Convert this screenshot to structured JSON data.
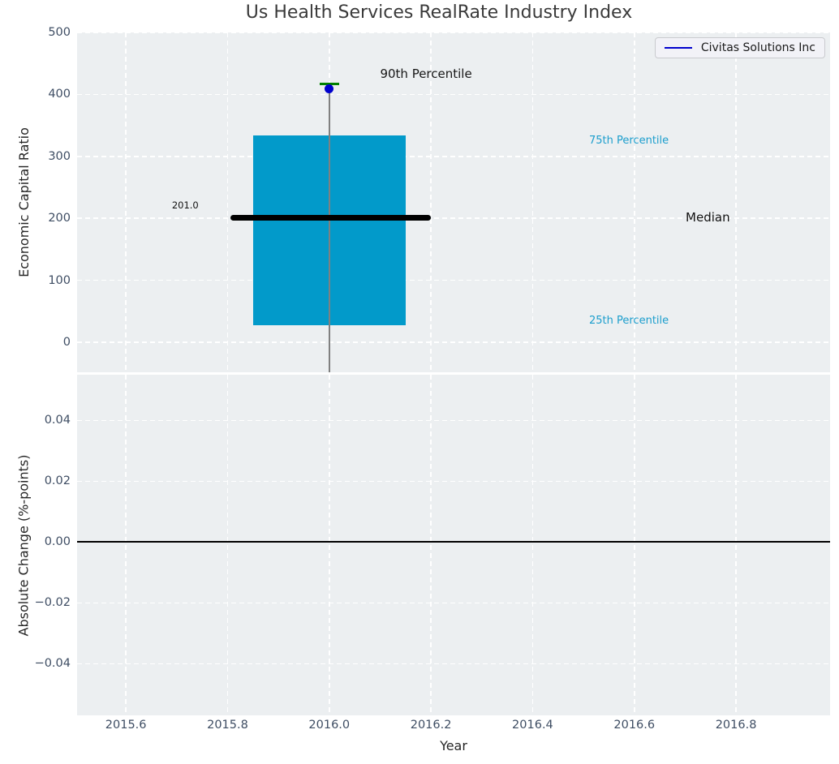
{
  "figure": {
    "background": "#ffffff",
    "axes_background": "#eceff1",
    "grid_color": "#ffffff",
    "tick_label_color": "#3e4d63",
    "axis_label_color": "#262626",
    "title_color": "#3a3a3a"
  },
  "chart_data": [
    {
      "type": "box",
      "title": "Us Health Services RealRate Industry Index",
      "ylabel": "Economic Capital Ratio",
      "xlim": [
        2015.504,
        2016.985
      ],
      "ylim": [
        -48.5,
        500
      ],
      "yticks": [
        500,
        400,
        300,
        200,
        100,
        0
      ],
      "ytick_labels": [
        "500",
        "400",
        "300",
        "200",
        "100",
        "0"
      ],
      "grid": true,
      "legend": {
        "position": "upper right",
        "entries": [
          {
            "label": "Civitas Solutions Inc",
            "color": "#0000cd"
          }
        ]
      },
      "box": {
        "x": 2016.0,
        "box_half_width": 0.15,
        "q1": 27,
        "median": 201.0,
        "q3": 334,
        "p90": 417,
        "median_label": "201.0",
        "median_span": [
          2015.805,
          2016.2
        ],
        "fill_color": "#029aca",
        "whisker_color": "#808080",
        "cap_color": "#008000",
        "median_color": "#000000"
      },
      "points": [
        {
          "label": "Civitas Solutions Inc",
          "x": 2016.0,
          "y": 409,
          "color": "#0000cd"
        }
      ],
      "annotations": [
        {
          "text": "90th Percentile",
          "x": 2016.1,
          "y": 433,
          "color": "#161616",
          "role": "callout-dark",
          "align": "left"
        },
        {
          "text": "75th Percentile",
          "x": 2016.511,
          "y": 325,
          "color": "#1c9ecd",
          "role": "callout-accent",
          "align": "left"
        },
        {
          "text": "Median",
          "x": 2016.701,
          "y": 202,
          "color": "#111111",
          "role": "callout-dark",
          "align": "left"
        },
        {
          "text": "25th Percentile",
          "x": 2016.511,
          "y": 34.5,
          "color": "#1c9ecd",
          "role": "callout-accent",
          "align": "left"
        },
        {
          "text": "201.0",
          "x": 2015.743,
          "y": 220.5,
          "color": "#111111",
          "role": "value-label",
          "align": "right"
        }
      ]
    },
    {
      "type": "line",
      "ylabel": "Absolute Change (%-points)",
      "xlabel": "Year",
      "xlim": [
        2015.504,
        2016.985
      ],
      "ylim": [
        -0.057,
        0.055
      ],
      "yticks": [
        0.04,
        0.02,
        0,
        -0.02,
        -0.04
      ],
      "ytick_labels": [
        "0.04",
        "0.02",
        "0.00",
        "−0.02",
        "−0.04"
      ],
      "xticks": [
        2015.6,
        2015.8,
        2016.0,
        2016.2,
        2016.4,
        2016.6,
        2016.8
      ],
      "xtick_labels": [
        "2015.6",
        "2015.8",
        "2016.0",
        "2016.2",
        "2016.4",
        "2016.6",
        "2016.8"
      ],
      "zero_line": {
        "y": 0.0,
        "color": "#000000"
      },
      "grid": true,
      "series": []
    }
  ]
}
